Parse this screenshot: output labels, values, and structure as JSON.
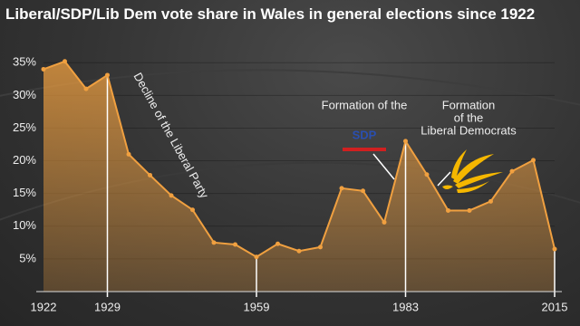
{
  "chart_data": {
    "type": "area-line",
    "title": "Liberal/SDP/Lib Dem vote share in Wales in general elections since 1922",
    "categories": [
      "1922",
      null,
      null,
      "1929",
      null,
      null,
      null,
      null,
      null,
      null,
      "1959",
      null,
      null,
      null,
      null,
      null,
      null,
      "1983",
      null,
      null,
      null,
      null,
      null,
      null,
      "2015"
    ],
    "values": [
      34,
      35.2,
      31,
      33.1,
      21,
      17.8,
      14.7,
      12.5,
      7.5,
      7.2,
      5.3,
      7.3,
      6.2,
      6.8,
      15.8,
      15.4,
      10.6,
      23.0,
      17.9,
      12.4,
      12.4,
      13.8,
      18.4,
      20.1,
      6.5
    ],
    "color": "#f0a040",
    "ylim": [
      0,
      36
    ],
    "yticks": [
      {
        "value": 5,
        "label": "5%"
      },
      {
        "value": 10,
        "label": "10%"
      },
      {
        "value": 15,
        "label": "15%"
      },
      {
        "value": 20,
        "label": "20%"
      },
      {
        "value": 25,
        "label": "25%"
      },
      {
        "value": 30,
        "label": "30%"
      },
      {
        "value": 35,
        "label": "35%"
      }
    ],
    "grid": true,
    "annotations": {
      "decline": "Decline of the Liberal Party",
      "sdp_formation": "Formation of the",
      "sdp": "SDP",
      "libdem_formation": [
        "Formation",
        "of the",
        "Liberal Democrats"
      ]
    }
  }
}
